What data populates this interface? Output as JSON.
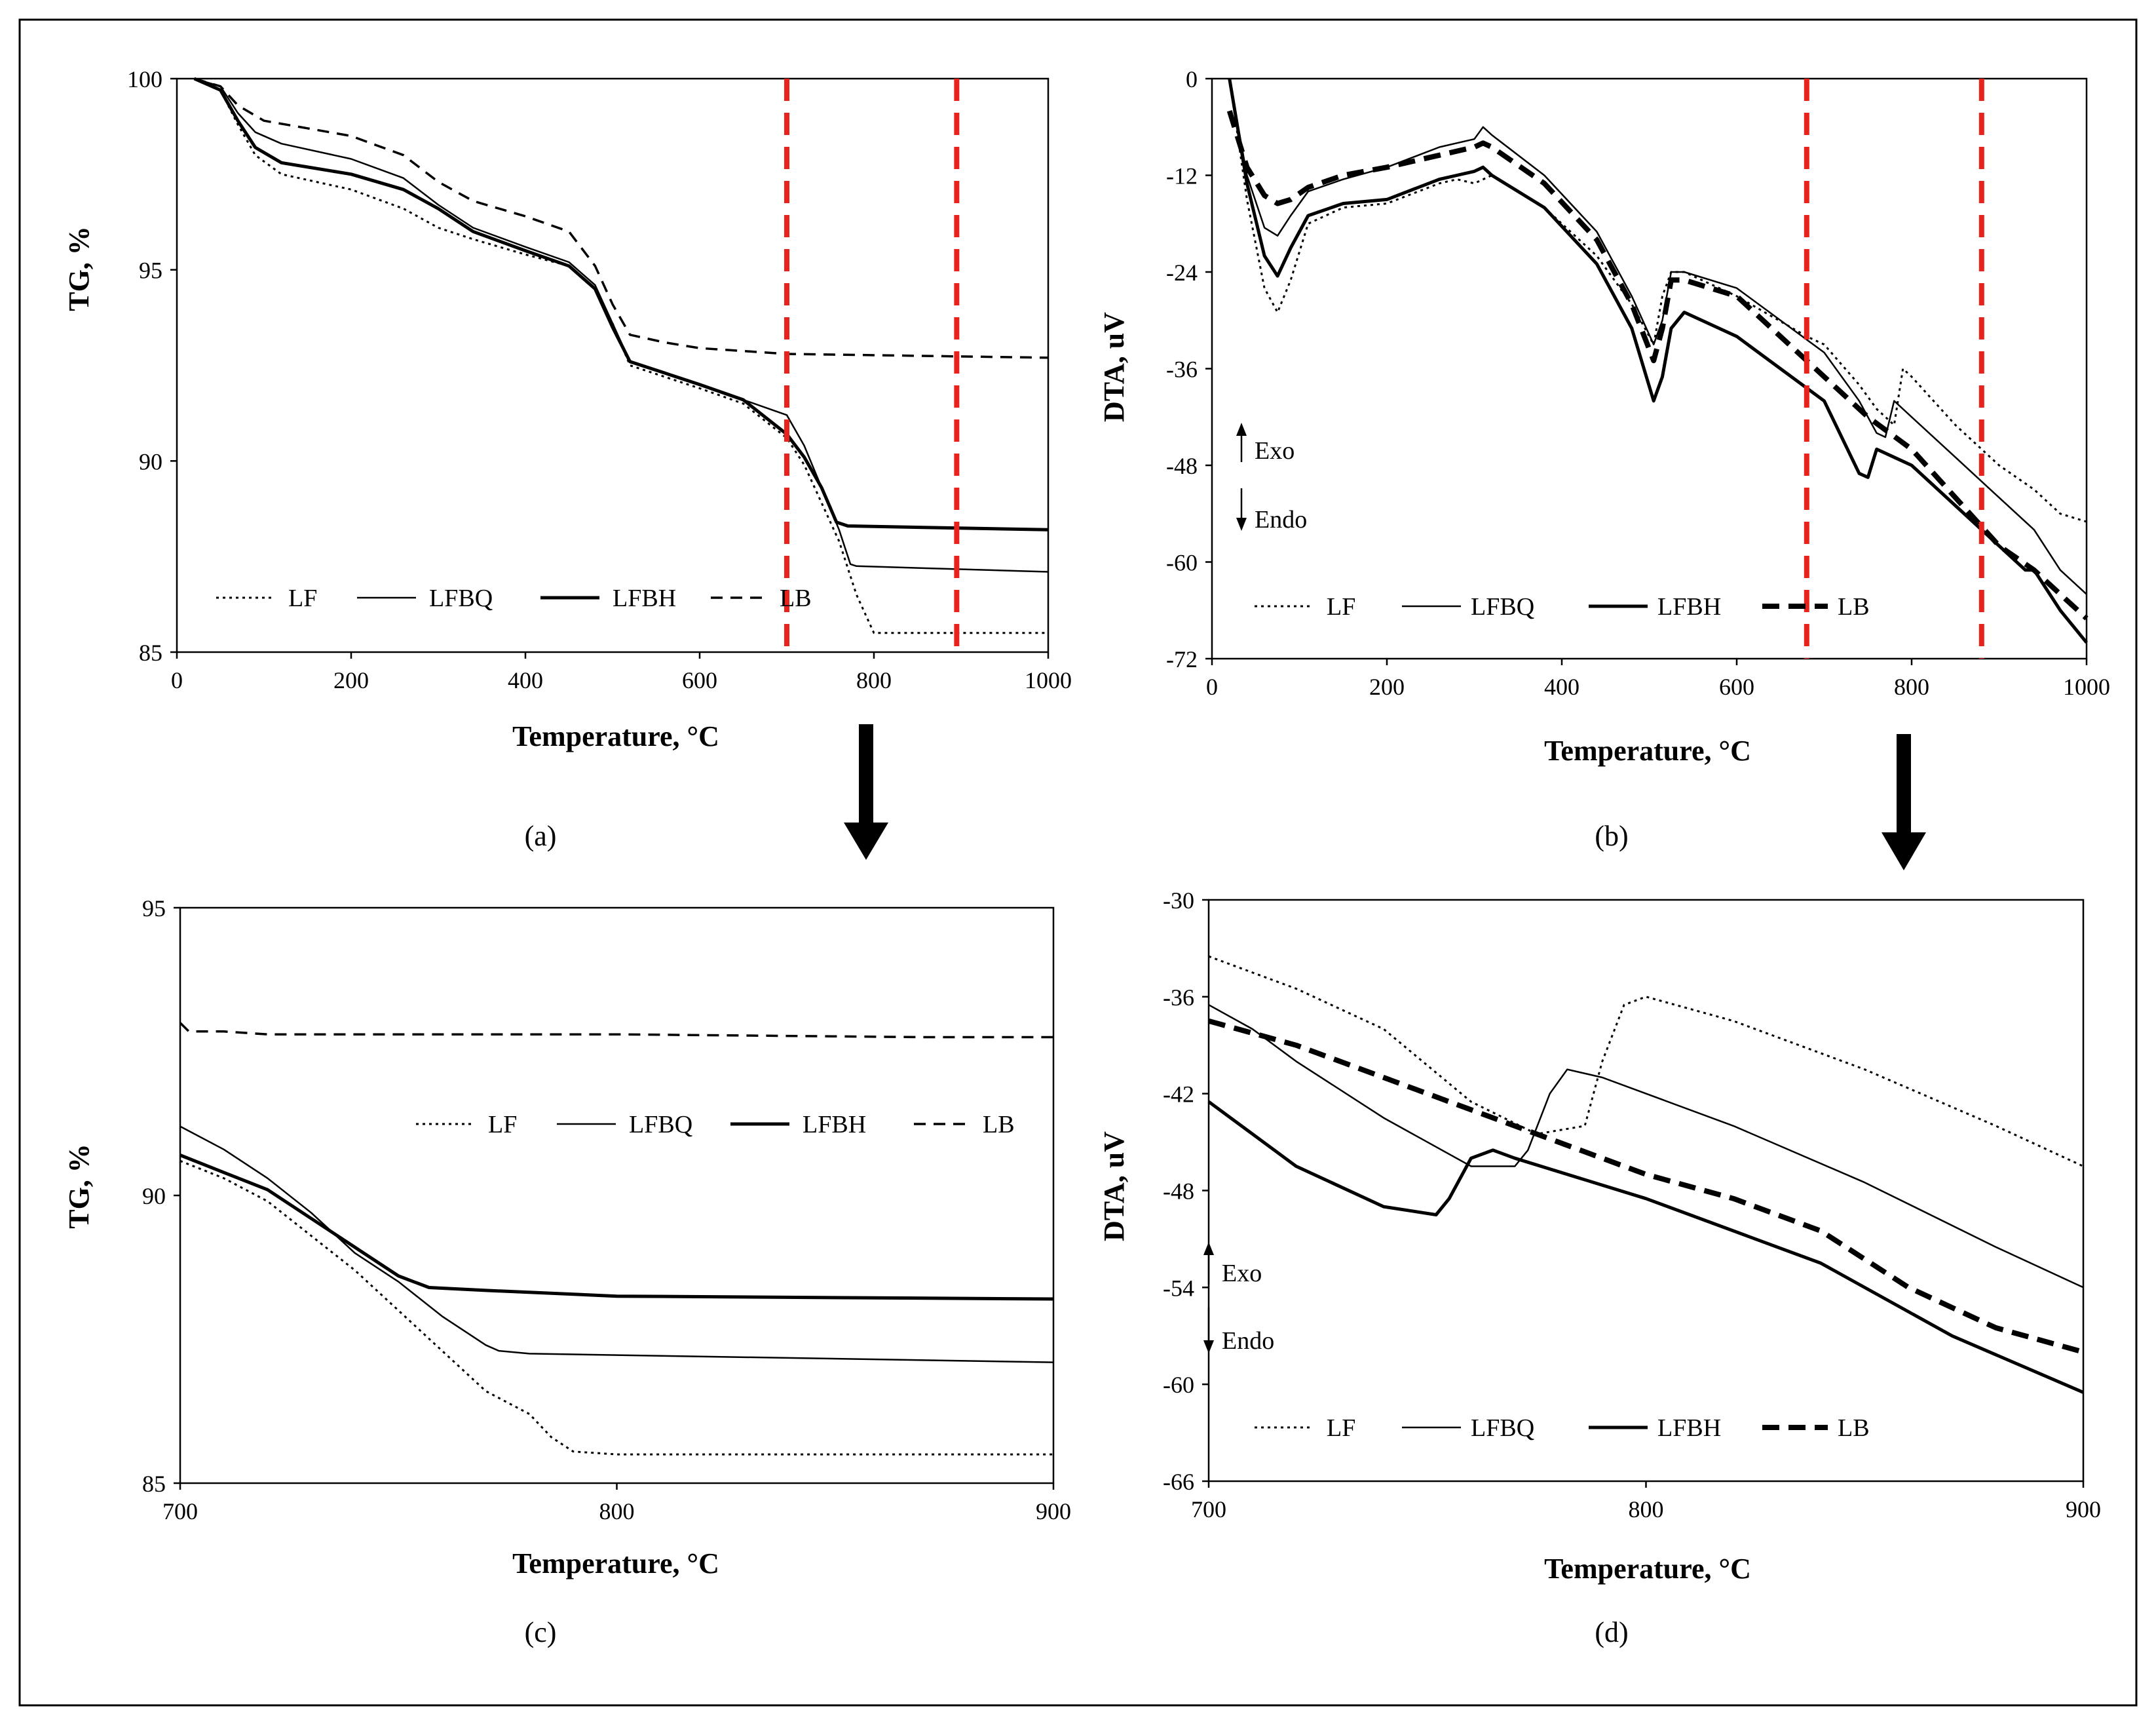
{
  "figure": {
    "frame_color": "#000000",
    "refline_color": "#e8231d",
    "arrow_color": "#000000"
  },
  "series_styles": {
    "LF": {
      "dash": "4,6",
      "width": 3
    },
    "LFBQ": {
      "dash": "",
      "width": 2.5
    },
    "LFBH": {
      "dash": "",
      "width": 5
    },
    "LB": {
      "dash": "18,12",
      "width": 3.5
    },
    "LB_bold": {
      "dash": "26,14",
      "width": 8
    }
  },
  "chart_data": [
    {
      "id": "a",
      "type": "line",
      "caption": "(a)",
      "xlabel": "Temperature, °C",
      "ylabel": "TG, %",
      "xlim": [
        0,
        1000
      ],
      "ylim": [
        85,
        100
      ],
      "xticks": [
        0,
        200,
        400,
        600,
        800,
        1000
      ],
      "yticks": [
        85,
        90,
        95,
        100
      ],
      "reference_lines_x": [
        700,
        895
      ],
      "legend_labels": [
        "LF",
        "LFBQ",
        "LFBH",
        "LB"
      ],
      "series": [
        {
          "name": "LF",
          "style": "LF",
          "x": [
            20,
            50,
            70,
            90,
            120,
            200,
            260,
            300,
            340,
            400,
            450,
            480,
            500,
            520,
            600,
            650,
            700,
            720,
            740,
            760,
            770,
            780,
            790,
            800,
            1000
          ],
          "y": [
            100,
            99.7,
            98.8,
            98,
            97.5,
            97.1,
            96.6,
            96.1,
            95.8,
            95.4,
            95.1,
            94.5,
            93.6,
            92.5,
            91.9,
            91.5,
            90.6,
            89.9,
            88.9,
            87.9,
            87.2,
            86.5,
            86,
            85.5,
            85.5
          ]
        },
        {
          "name": "LFBQ",
          "style": "LFBQ",
          "x": [
            20,
            50,
            70,
            90,
            120,
            200,
            260,
            300,
            340,
            400,
            450,
            480,
            500,
            520,
            600,
            650,
            700,
            720,
            740,
            760,
            773,
            780,
            1000
          ],
          "y": [
            100,
            99.8,
            99.1,
            98.6,
            98.3,
            97.9,
            97.4,
            96.7,
            96.1,
            95.6,
            95.2,
            94.6,
            93.6,
            92.6,
            92,
            91.6,
            91.2,
            90.4,
            89.3,
            88.2,
            87.3,
            87.25,
            87.1
          ]
        },
        {
          "name": "LFBH",
          "style": "LFBH",
          "x": [
            20,
            50,
            70,
            90,
            120,
            200,
            260,
            300,
            340,
            400,
            450,
            480,
            500,
            520,
            600,
            650,
            700,
            720,
            740,
            757,
            770,
            1000
          ],
          "y": [
            100,
            99.7,
            98.9,
            98.2,
            97.8,
            97.5,
            97.1,
            96.6,
            96,
            95.5,
            95.1,
            94.5,
            93.5,
            92.6,
            92,
            91.6,
            90.7,
            90.1,
            89.3,
            88.4,
            88.3,
            88.2
          ]
        },
        {
          "name": "LB",
          "style": "LB",
          "x": [
            20,
            50,
            70,
            100,
            150,
            200,
            260,
            300,
            340,
            400,
            450,
            480,
            500,
            520,
            560,
            600,
            700,
            1000
          ],
          "y": [
            100,
            99.8,
            99.3,
            98.9,
            98.7,
            98.5,
            98,
            97.3,
            96.8,
            96.4,
            96,
            95.1,
            94.1,
            93.3,
            93.1,
            92.95,
            92.8,
            92.7
          ]
        }
      ]
    },
    {
      "id": "b",
      "type": "line",
      "caption": "(b)",
      "xlabel": "Temperature, °C",
      "ylabel": "DTA, uV",
      "xlim": [
        0,
        1000
      ],
      "ylim": [
        -72,
        0
      ],
      "xticks": [
        0,
        200,
        400,
        600,
        800,
        1000
      ],
      "yticks": [
        0,
        -12,
        -24,
        -36,
        -48,
        -60,
        -72
      ],
      "reference_lines_x": [
        680,
        880
      ],
      "legend_labels": [
        "LF",
        "LFBQ",
        "LFBH",
        "LB"
      ],
      "note_exo": "Exo",
      "note_endo": "Endo",
      "series": [
        {
          "name": "LF",
          "style": "LF",
          "x": [
            20,
            40,
            60,
            75,
            90,
            110,
            150,
            200,
            260,
            280,
            300,
            320,
            380,
            440,
            480,
            505,
            515,
            525,
            540,
            600,
            680,
            700,
            740,
            760,
            780,
            790,
            800,
            850,
            900,
            940,
            970,
            1000
          ],
          "y": [
            0,
            -15,
            -26,
            -29,
            -25,
            -18,
            -16,
            -15.5,
            -13,
            -12.5,
            -13,
            -12,
            -16,
            -22,
            -28,
            -33,
            -27,
            -24,
            -24,
            -27,
            -32,
            -33,
            -38,
            -41,
            -43,
            -36,
            -37,
            -43,
            -48,
            -51,
            -54,
            -55
          ]
        },
        {
          "name": "LFBQ",
          "style": "LFBQ",
          "x": [
            20,
            40,
            60,
            75,
            90,
            110,
            150,
            200,
            260,
            280,
            300,
            310,
            320,
            380,
            440,
            480,
            505,
            515,
            525,
            540,
            600,
            700,
            740,
            760,
            770,
            780,
            790,
            800,
            850,
            900,
            940,
            970,
            1000
          ],
          "y": [
            0,
            -12,
            -18.5,
            -19.5,
            -17,
            -14,
            -12.5,
            -11,
            -8.5,
            -8,
            -7.5,
            -6,
            -7,
            -12,
            -19,
            -27,
            -33,
            -30,
            -24,
            -24,
            -26,
            -34,
            -40,
            -44,
            -44.5,
            -40,
            -41,
            -42,
            -47,
            -52,
            -56,
            -61,
            -64
          ]
        },
        {
          "name": "LFBH",
          "style": "LFBH",
          "x": [
            20,
            40,
            60,
            75,
            90,
            110,
            150,
            200,
            260,
            280,
            300,
            310,
            320,
            380,
            440,
            480,
            505,
            515,
            525,
            540,
            600,
            700,
            740,
            750,
            760,
            780,
            800,
            850,
            900,
            930,
            940,
            970,
            1000
          ],
          "y": [
            0,
            -13,
            -22,
            -24.5,
            -21,
            -17,
            -15.5,
            -15,
            -12.5,
            -12,
            -11.5,
            -11,
            -12,
            -16,
            -23,
            -31,
            -40,
            -37,
            -31,
            -29,
            -32,
            -40,
            -49,
            -49.5,
            -46,
            -47,
            -48,
            -53,
            -58,
            -61,
            -61,
            -66,
            -70
          ]
        },
        {
          "name": "LB",
          "style": "LB_bold",
          "x": [
            20,
            40,
            60,
            75,
            90,
            110,
            150,
            200,
            260,
            280,
            300,
            310,
            320,
            380,
            440,
            480,
            505,
            515,
            525,
            540,
            600,
            700,
            750,
            800,
            850,
            900,
            940,
            970,
            1000
          ],
          "y": [
            -4,
            -11,
            -14.5,
            -15.5,
            -15,
            -13.5,
            -12,
            -11,
            -9.5,
            -9,
            -8.5,
            -8,
            -8.5,
            -13,
            -20,
            -28,
            -35,
            -31,
            -25,
            -25,
            -27,
            -37,
            -42,
            -46,
            -52,
            -58,
            -61,
            -64,
            -67
          ]
        }
      ]
    },
    {
      "id": "c",
      "type": "line",
      "caption": "(c)",
      "xlabel": "Temperature, °C",
      "ylabel": "TG, %",
      "xlim": [
        700,
        900
      ],
      "ylim": [
        85,
        95
      ],
      "xticks": [
        700,
        800,
        900
      ],
      "yticks": [
        85,
        90,
        95
      ],
      "legend_labels": [
        "LF",
        "LFBQ",
        "LFBH",
        "LB"
      ],
      "series": [
        {
          "name": "LF",
          "style": "LF",
          "x": [
            700,
            710,
            720,
            730,
            740,
            750,
            760,
            770,
            775,
            780,
            785,
            790,
            800,
            900
          ],
          "y": [
            90.6,
            90.3,
            89.9,
            89.3,
            88.7,
            88,
            87.3,
            86.6,
            86.4,
            86.2,
            85.8,
            85.55,
            85.5,
            85.5
          ]
        },
        {
          "name": "LFBQ",
          "style": "LFBQ",
          "x": [
            700,
            710,
            720,
            730,
            740,
            750,
            760,
            770,
            773,
            780,
            900
          ],
          "y": [
            91.2,
            90.8,
            90.3,
            89.7,
            89,
            88.5,
            87.9,
            87.4,
            87.3,
            87.25,
            87.1
          ]
        },
        {
          "name": "LFBH",
          "style": "LFBH",
          "x": [
            700,
            710,
            720,
            730,
            740,
            750,
            757,
            770,
            800,
            900
          ],
          "y": [
            90.7,
            90.4,
            90.1,
            89.6,
            89.1,
            88.6,
            88.4,
            88.35,
            88.25,
            88.2
          ]
        },
        {
          "name": "LB",
          "style": "LB",
          "x": [
            700,
            702,
            710,
            720,
            730,
            800,
            870,
            900
          ],
          "y": [
            93,
            92.85,
            92.85,
            92.8,
            92.8,
            92.8,
            92.75,
            92.75
          ]
        }
      ]
    },
    {
      "id": "d",
      "type": "line",
      "caption": "(d)",
      "xlabel": "Temperature, °C",
      "ylabel": "DTA, uV",
      "xlim": [
        700,
        900
      ],
      "ylim": [
        -66,
        -30
      ],
      "xticks": [
        700,
        800,
        900
      ],
      "yticks": [
        -30,
        -36,
        -42,
        -48,
        -54,
        -60,
        -66
      ],
      "legend_labels": [
        "LF",
        "LFBQ",
        "LFBH",
        "LB"
      ],
      "note_exo": "Exo",
      "note_endo": "Endo",
      "series": [
        {
          "name": "LF",
          "style": "LF",
          "x": [
            700,
            710,
            720,
            740,
            760,
            775,
            786,
            790,
            795,
            800,
            820,
            850,
            880,
            900
          ],
          "y": [
            -33.5,
            -34.5,
            -35.5,
            -38,
            -42.5,
            -44.5,
            -44,
            -40,
            -36.5,
            -36,
            -37.5,
            -40.5,
            -44,
            -46.5
          ]
        },
        {
          "name": "LFBQ",
          "style": "LFBQ",
          "x": [
            700,
            710,
            720,
            740,
            760,
            770,
            773,
            778,
            782,
            790,
            820,
            850,
            880,
            900
          ],
          "y": [
            -36.5,
            -38,
            -40,
            -43.5,
            -46.5,
            -46.5,
            -45.5,
            -42,
            -40.5,
            -41,
            -44,
            -47.5,
            -51.5,
            -54
          ]
        },
        {
          "name": "LFBH",
          "style": "LFBH",
          "x": [
            700,
            710,
            720,
            740,
            752,
            755,
            760,
            765,
            770,
            800,
            840,
            870,
            900
          ],
          "y": [
            -42.5,
            -44.5,
            -46.5,
            -49,
            -49.5,
            -48.5,
            -46,
            -45.5,
            -46,
            -48.5,
            -52.5,
            -57,
            -60.5
          ]
        },
        {
          "name": "LB",
          "style": "LB_bold",
          "x": [
            700,
            720,
            740,
            760,
            780,
            800,
            820,
            840,
            860,
            880,
            900
          ],
          "y": [
            -37.5,
            -39,
            -41,
            -43,
            -45,
            -47,
            -48.5,
            -50.5,
            -54,
            -56.5,
            -58
          ]
        }
      ]
    }
  ]
}
